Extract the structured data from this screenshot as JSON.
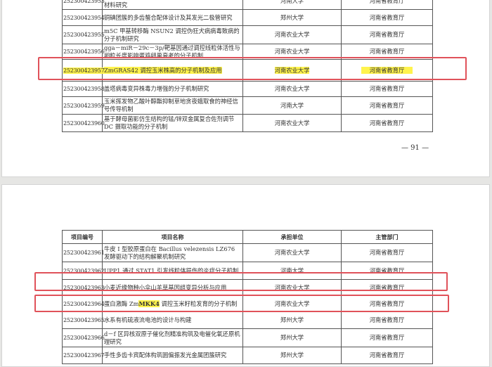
{
  "page1": {
    "rows": [
      {
        "id": "252300423953",
        "name": "材料研究",
        "unit": "河南大学",
        "dept": "河南省教育厅"
      },
      {
        "id": "252300423954",
        "name": "铜碘团簇的多齿螯合配体设计及其发光二极管研究",
        "unit": "郑州大学",
        "dept": "河南省教育厅"
      },
      {
        "id": "252300423955",
        "name": "m5C 甲基转移酶 NSUN2 调控伪狂犬病病毒致病的分子机制研究",
        "unit": "河南农业大学",
        "dept": "河南省教育厅"
      },
      {
        "id": "252300423956",
        "name": "gga－miR－29c－3p/靶基因通过调控线粒体活性与卵粒长度影响蛋鸡卵巢衰老的分子机制",
        "unit": "河南农业大学",
        "dept": "河南省教育厅"
      },
      {
        "id": "252300423957",
        "name": "ZmGRAS42 调控玉米株高的分子机制及应用",
        "unit": "河南农业大学",
        "dept": "河南省教育厅",
        "highlight": true
      },
      {
        "id": "252300423958",
        "name": "盖塔病毒变异株毒力增强的分子机制研究",
        "unit": "河南农业大学",
        "dept": "河南省教育厅"
      },
      {
        "id": "252300423959",
        "name": "玉米挥发物乙酸叶醇酯抑制草地贪夜蛾取食的神经信号传导机制",
        "unit": "河南大学",
        "dept": "河南省教育厅"
      },
      {
        "id": "252300423960",
        "name": "基于酵母菌影仿生结构的锰/锌双金属复合佐剂调节 DC 摄取功能的分子机制",
        "unit": "河南农业大学",
        "dept": "河南省教育厅"
      }
    ],
    "page_number": "— 91 —"
  },
  "page2": {
    "headers": [
      "项目编号",
      "项目名称",
      "承担单位",
      "主管部门"
    ],
    "rows": [
      {
        "id": "252300423961",
        "name": "牛皮 I 型胶原蛋白在 Bacillus velezensis LZ676 发酵驱动下的结构解聚机制研究",
        "unit": "河南农业大学",
        "dept": "河南省教育厅"
      },
      {
        "id": "252300423962",
        "name": "UPP1 通过 STAT1 引发线粒体损伤的炎症分子机制",
        "unit": "河南大学",
        "dept": "河南省教育厅"
      },
      {
        "id": "252300423963",
        "name": "小麦近缘物种小伞山羊草基因组变异分析与应用",
        "unit": "河南农业大学",
        "dept": "河南省教育厅"
      },
      {
        "id": "252300423964",
        "name_prefix": "蛋白激酶 Zm",
        "name_hl": "MKK4",
        "name_suffix": " 调控玉米籽粒发育的分子机制",
        "unit": "河南农业大学",
        "dept": "河南省教育厅"
      },
      {
        "id": "252300423965",
        "name": "水系有机硫液流电池的设计与构建",
        "unit": "郑州大学",
        "dept": "河南省教育厅"
      },
      {
        "id": "252300423966",
        "name": "d－f 区异核双原子催化剂精准构筑及电催化氧还原机理研究",
        "unit": "郑州大学",
        "dept": "河南省教育厅"
      },
      {
        "id": "252300423967",
        "name": "手性多齿卡宾配体构筑圆偏振发光金属团簇研究",
        "unit": "郑州大学",
        "dept": "河南省教育厅"
      }
    ]
  },
  "colors": {
    "highlight": "#fff34d",
    "annotation_box": "#e0525a"
  }
}
